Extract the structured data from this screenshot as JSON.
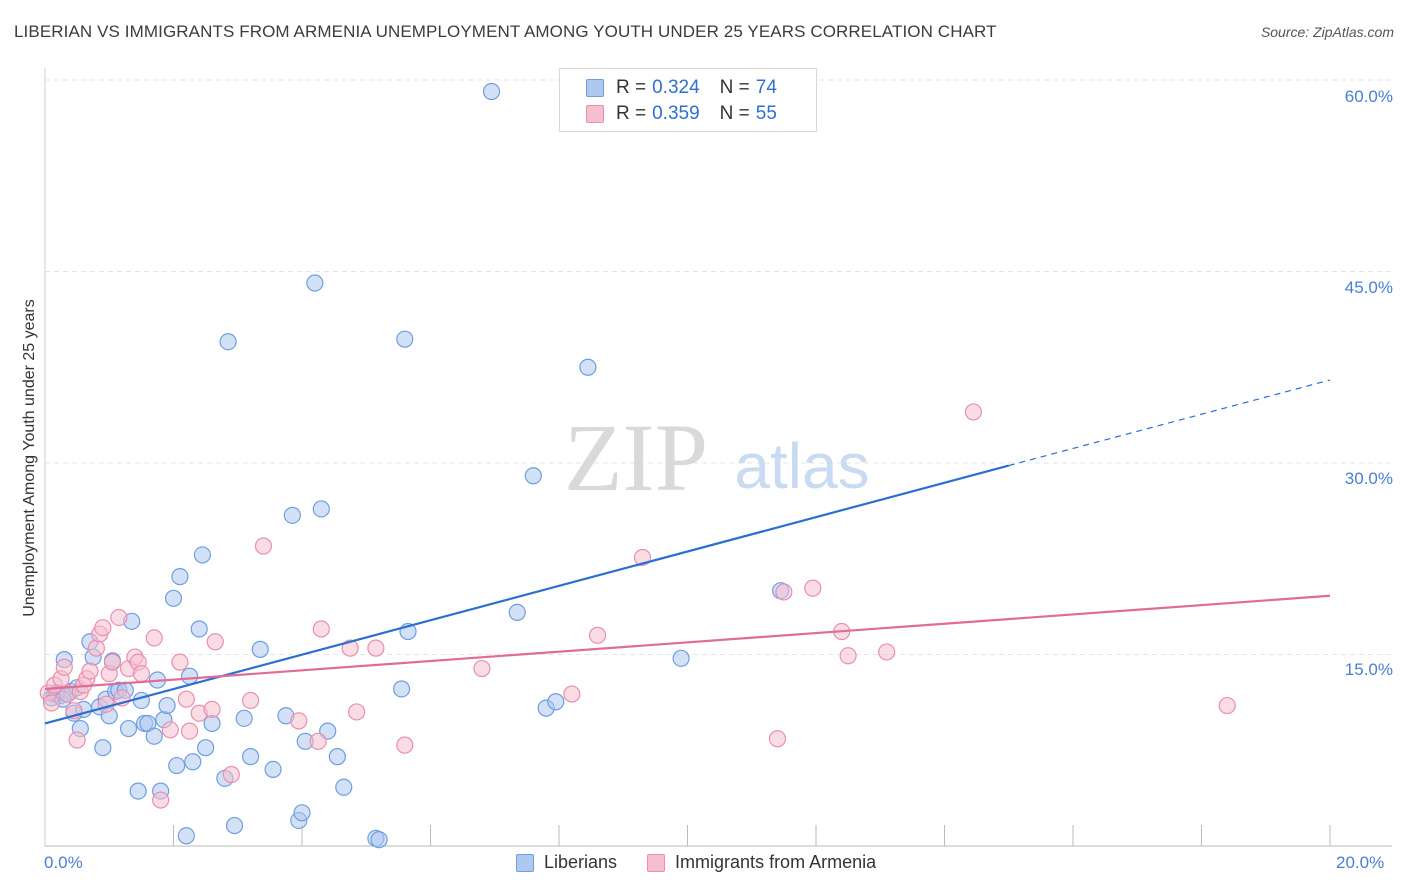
{
  "title": "LIBERIAN VS IMMIGRANTS FROM ARMENIA UNEMPLOYMENT AMONG YOUTH UNDER 25 YEARS CORRELATION CHART",
  "source": "Source: ZipAtlas.com",
  "watermark": {
    "zip": "ZIP",
    "atlas": "atlas"
  },
  "legend": {
    "series1": {
      "r_label": "R =",
      "r_value": "0.324",
      "n_label": "N =",
      "n_value": "74"
    },
    "series2": {
      "r_label": "R =",
      "r_value": "0.359",
      "n_label": "N =",
      "n_value": "55"
    }
  },
  "colors": {
    "series1_fill": "#aec8ef",
    "series1_stroke": "#6f9ee0",
    "series1_line": "#2b6fd0",
    "series2_fill": "#f6bfd0",
    "series2_stroke": "#ea8fae",
    "series2_line": "#e06c98",
    "grid": "#e4e4e4",
    "tick_text": "#4a7fd0"
  },
  "chart_data": {
    "type": "scatter",
    "title": "LIBERIAN VS IMMIGRANTS FROM ARMENIA UNEMPLOYMENT AMONG YOUTH UNDER 25 YEARS CORRELATION CHART",
    "xlabel": "",
    "ylabel": "Unemployment Among Youth under 25 years",
    "xlim": [
      0,
      20
    ],
    "ylim": [
      0,
      60
    ],
    "x_tick_labels": [
      "0.0%",
      "20.0%"
    ],
    "y_ticks": [
      15,
      30,
      45,
      60
    ],
    "y_tick_labels": [
      "15.0%",
      "30.0%",
      "45.0%",
      "60.0%"
    ],
    "grid": true,
    "series": [
      {
        "name": "Liberians",
        "r": 0.324,
        "n": 74,
        "trend": {
          "x0": 0,
          "y0": 9.6,
          "x1": 15,
          "y1": 29.8,
          "dashed_to_x": 20,
          "dashed_to_y": 36.5
        },
        "points": [
          [
            0.1,
            11.6
          ],
          [
            0.15,
            11.9
          ],
          [
            0.2,
            12.0
          ],
          [
            0.25,
            11.8
          ],
          [
            0.3,
            14.6
          ],
          [
            0.35,
            11.9
          ],
          [
            0.4,
            12.1
          ],
          [
            0.45,
            10.4
          ],
          [
            0.5,
            12.4
          ],
          [
            0.55,
            9.2
          ],
          [
            0.6,
            10.7
          ],
          [
            0.7,
            16.0
          ],
          [
            0.75,
            14.8
          ],
          [
            0.85,
            10.9
          ],
          [
            0.9,
            7.7
          ],
          [
            0.95,
            11.5
          ],
          [
            1.0,
            10.2
          ],
          [
            1.05,
            14.5
          ],
          [
            1.1,
            12.1
          ],
          [
            1.15,
            12.2
          ],
          [
            1.25,
            12.2
          ],
          [
            1.3,
            9.2
          ],
          [
            1.35,
            17.6
          ],
          [
            1.45,
            4.3
          ],
          [
            1.5,
            11.4
          ],
          [
            1.55,
            9.6
          ],
          [
            1.6,
            9.6
          ],
          [
            1.7,
            8.6
          ],
          [
            1.75,
            13.0
          ],
          [
            1.8,
            4.3
          ],
          [
            1.85,
            9.9
          ],
          [
            1.9,
            11.0
          ],
          [
            2.0,
            19.4
          ],
          [
            2.05,
            6.3
          ],
          [
            2.1,
            21.1
          ],
          [
            2.2,
            0.8
          ],
          [
            2.25,
            13.3
          ],
          [
            2.3,
            6.6
          ],
          [
            2.4,
            17.0
          ],
          [
            2.45,
            22.8
          ],
          [
            2.5,
            7.7
          ],
          [
            2.6,
            9.6
          ],
          [
            2.8,
            5.3
          ],
          [
            2.85,
            39.5
          ],
          [
            2.95,
            1.6
          ],
          [
            3.1,
            10.0
          ],
          [
            3.2,
            7.0
          ],
          [
            3.35,
            15.4
          ],
          [
            3.55,
            6.0
          ],
          [
            3.75,
            10.2
          ],
          [
            3.85,
            25.9
          ],
          [
            3.95,
            2.0
          ],
          [
            4.0,
            2.6
          ],
          [
            4.05,
            8.2
          ],
          [
            4.2,
            44.1
          ],
          [
            4.3,
            26.4
          ],
          [
            4.4,
            9.0
          ],
          [
            4.55,
            7.0
          ],
          [
            4.65,
            4.6
          ],
          [
            5.15,
            0.6
          ],
          [
            5.2,
            0.5
          ],
          [
            5.55,
            12.3
          ],
          [
            5.6,
            39.7
          ],
          [
            5.65,
            16.8
          ],
          [
            6.95,
            59.1
          ],
          [
            7.35,
            18.3
          ],
          [
            7.6,
            29.0
          ],
          [
            7.8,
            10.8
          ],
          [
            7.95,
            11.3
          ],
          [
            8.45,
            37.5
          ],
          [
            9.9,
            14.7
          ],
          [
            11.45,
            20.0
          ],
          [
            0.18,
            12.0
          ],
          [
            0.28,
            11.5
          ]
        ]
      },
      {
        "name": "Immigrants from Armenia",
        "r": 0.359,
        "n": 55,
        "trend": {
          "x0": 0,
          "y0": 12.3,
          "x1": 20,
          "y1": 19.6
        },
        "points": [
          [
            0.05,
            12.0
          ],
          [
            0.1,
            11.2
          ],
          [
            0.15,
            12.6
          ],
          [
            0.25,
            13.1
          ],
          [
            0.3,
            14.0
          ],
          [
            0.35,
            11.9
          ],
          [
            0.45,
            10.6
          ],
          [
            0.5,
            8.3
          ],
          [
            0.55,
            12.1
          ],
          [
            0.6,
            12.6
          ],
          [
            0.65,
            13.1
          ],
          [
            0.7,
            13.7
          ],
          [
            0.8,
            15.5
          ],
          [
            0.85,
            16.6
          ],
          [
            0.9,
            17.1
          ],
          [
            0.95,
            11.1
          ],
          [
            1.0,
            13.5
          ],
          [
            1.05,
            14.4
          ],
          [
            1.15,
            17.9
          ],
          [
            1.2,
            11.6
          ],
          [
            1.3,
            13.9
          ],
          [
            1.4,
            14.8
          ],
          [
            1.45,
            14.4
          ],
          [
            1.5,
            13.5
          ],
          [
            1.7,
            16.3
          ],
          [
            1.8,
            3.6
          ],
          [
            1.95,
            9.1
          ],
          [
            2.1,
            14.4
          ],
          [
            2.2,
            11.5
          ],
          [
            2.25,
            9.0
          ],
          [
            2.4,
            10.4
          ],
          [
            2.6,
            10.7
          ],
          [
            2.65,
            16.0
          ],
          [
            2.9,
            5.6
          ],
          [
            3.2,
            11.4
          ],
          [
            3.4,
            23.5
          ],
          [
            3.95,
            9.8
          ],
          [
            4.25,
            8.2
          ],
          [
            4.3,
            17.0
          ],
          [
            4.75,
            15.5
          ],
          [
            4.85,
            10.5
          ],
          [
            5.15,
            15.5
          ],
          [
            5.6,
            7.9
          ],
          [
            6.8,
            13.9
          ],
          [
            8.2,
            11.9
          ],
          [
            8.6,
            16.5
          ],
          [
            9.3,
            22.6
          ],
          [
            11.4,
            8.4
          ],
          [
            11.5,
            19.9
          ],
          [
            11.95,
            20.2
          ],
          [
            12.4,
            16.8
          ],
          [
            12.5,
            14.9
          ],
          [
            13.1,
            15.2
          ],
          [
            14.45,
            34.0
          ],
          [
            18.4,
            11.0
          ]
        ]
      }
    ]
  },
  "bottom_legend": {
    "series1": "Liberians",
    "series2": "Immigrants from Armenia"
  }
}
